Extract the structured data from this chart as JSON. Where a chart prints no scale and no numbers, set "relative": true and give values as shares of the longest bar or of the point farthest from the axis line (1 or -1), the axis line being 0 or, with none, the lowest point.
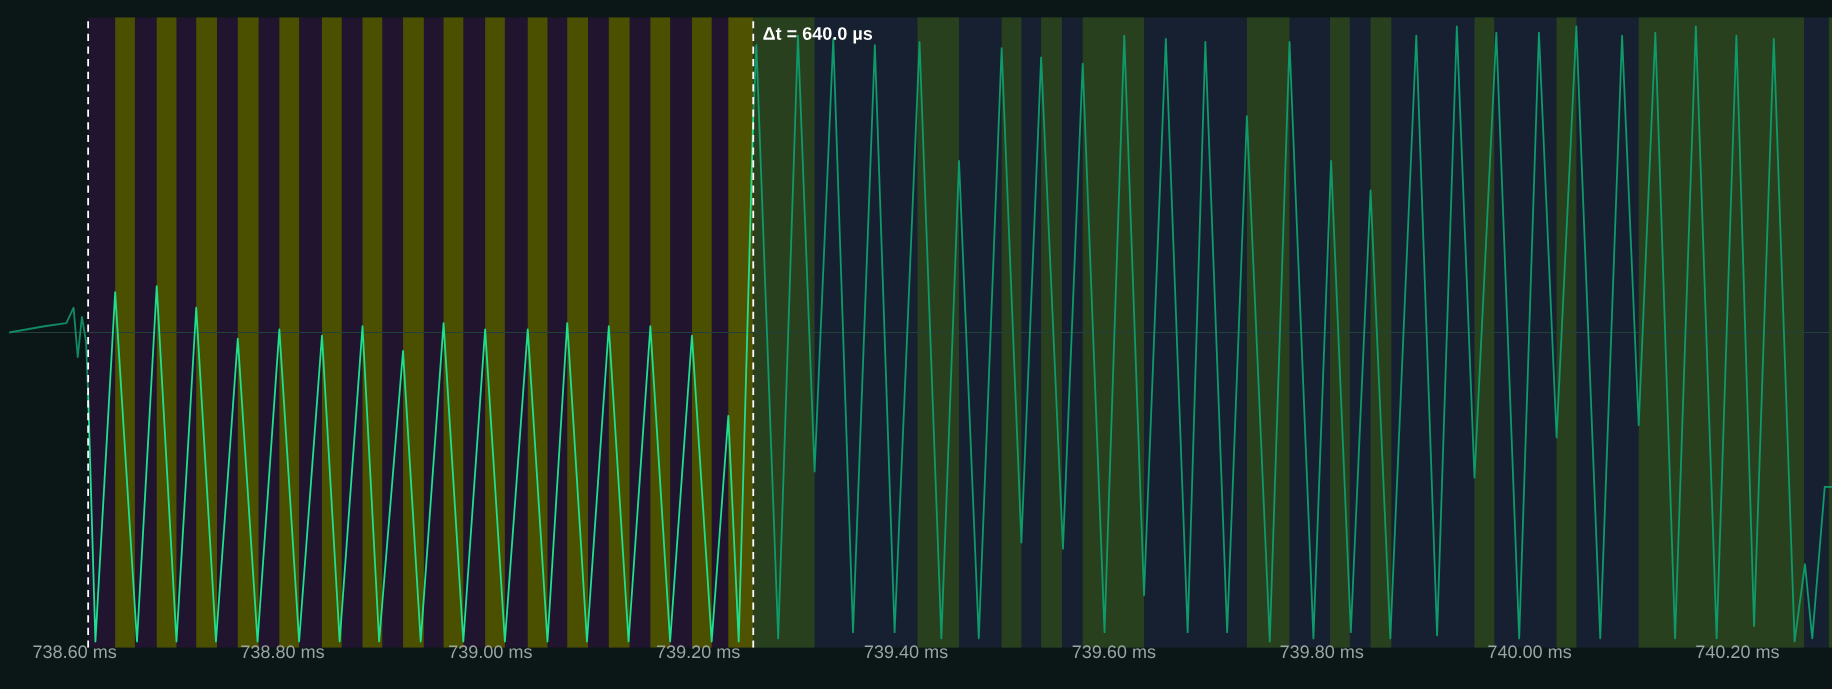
{
  "chart_data": {
    "type": "line",
    "relative": true,
    "xlim": [
      738.537,
      740.291
    ],
    "xticks": [
      {
        "value": 738.6,
        "label": "738.60 ms"
      },
      {
        "value": 738.8,
        "label": "738.80 ms"
      },
      {
        "value": 739.0,
        "label": "739.00 ms"
      },
      {
        "value": 739.2,
        "label": "739.20 ms"
      },
      {
        "value": 739.4,
        "label": "739.40 ms"
      },
      {
        "value": 739.6,
        "label": "739.60 ms"
      },
      {
        "value": 739.8,
        "label": "739.80 ms"
      },
      {
        "value": 740.0,
        "label": "740.00 ms"
      },
      {
        "value": 740.2,
        "label": "740.20 ms"
      }
    ],
    "tick_labels": "x",
    "grid": false,
    "annotations": [
      "Δt = 640.0 µs"
    ],
    "series": [
      {
        "color": "#128a64",
        "x": [
          738.537,
          738.571,
          738.592,
          738.599,
          738.603,
          738.607,
          738.611,
          738.613
        ],
        "values": [
          0,
          0.02,
          0.03,
          0.08,
          -0.08,
          0.05,
          -0.03,
          -0.2
        ]
      },
      {
        "color": "#1ee08e",
        "x": [
          738.613,
          738.62,
          738.639,
          738.66,
          738.679,
          738.698,
          738.717,
          738.736,
          738.757,
          738.776,
          738.797,
          738.816,
          738.838,
          738.855,
          738.877,
          738.893,
          738.916,
          738.933,
          738.955,
          738.974,
          738.995,
          739.014,
          739.036,
          739.055,
          739.074,
          739.093,
          739.114,
          739.133,
          739.154,
          739.173,
          739.194,
          739.213,
          739.229,
          739.239,
          739.253
        ],
        "values": [
          -0.2,
          -1.0,
          0.13,
          -1.0,
          0.15,
          -1.0,
          0.08,
          -1.0,
          -0.02,
          -1.0,
          0.01,
          -1.0,
          -0.01,
          -1.0,
          0.02,
          -1.0,
          -0.06,
          -1.0,
          0.03,
          -1.0,
          0.01,
          -1.0,
          0.01,
          -1.0,
          0.03,
          -1.0,
          0.02,
          -1.0,
          0.02,
          -1.0,
          -0.01,
          -1.0,
          -0.27,
          -1.0,
          0.7
        ]
      },
      {
        "color": "#0f9a6a",
        "x": [
          739.253,
          739.256,
          739.277,
          739.296,
          739.312,
          739.33,
          739.349,
          739.37,
          739.389,
          739.413,
          739.434,
          739.451,
          739.47,
          739.492,
          739.511,
          739.53,
          739.551,
          739.57,
          739.591,
          739.61,
          739.629,
          739.65,
          739.671,
          739.688,
          739.709,
          739.728,
          739.75,
          739.769,
          739.792,
          739.809,
          739.828,
          739.847,
          739.866,
          739.891,
          739.911,
          739.93,
          739.947,
          739.968,
          739.99,
          740.009,
          740.026,
          740.045,
          740.068,
          740.089,
          740.105,
          740.121,
          740.14,
          740.16,
          740.18,
          740.199,
          740.216,
          740.235,
          740.255,
          740.265,
          740.272,
          740.284,
          740.291
        ],
        "values": [
          0.7,
          0.93,
          -0.99,
          0.96,
          -0.45,
          0.95,
          -0.97,
          0.93,
          -0.97,
          0.94,
          -0.99,
          0.555,
          -0.99,
          0.92,
          -0.68,
          0.89,
          -0.7,
          0.87,
          -0.97,
          0.96,
          -0.85,
          0.95,
          -0.97,
          0.94,
          -0.97,
          0.7,
          -1.0,
          0.94,
          -0.99,
          0.555,
          -0.97,
          0.46,
          -0.99,
          0.96,
          -0.98,
          0.99,
          -0.47,
          0.97,
          -0.99,
          0.97,
          -0.34,
          0.99,
          -0.99,
          0.96,
          -0.3,
          0.97,
          -0.99,
          0.99,
          -0.99,
          0.96,
          -0.95,
          0.95,
          -1.0,
          -0.75,
          -0.99,
          -0.5,
          -0.5
        ]
      }
    ],
    "bands": [
      {
        "axis": "x",
        "from": 738.613,
        "to": 739.253,
        "color": "#21142e"
      },
      {
        "axis": "x",
        "from": 739.253,
        "to": 740.291,
        "color": "#172030"
      },
      {
        "axis": "x",
        "from": 738.639,
        "to": 738.658,
        "color": "#4a5000"
      },
      {
        "axis": "x",
        "from": 738.679,
        "to": 738.698,
        "color": "#4a5000"
      },
      {
        "axis": "x",
        "from": 738.717,
        "to": 738.737,
        "color": "#4a5000"
      },
      {
        "axis": "x",
        "from": 738.757,
        "to": 738.777,
        "color": "#4a5000"
      },
      {
        "axis": "x",
        "from": 738.797,
        "to": 738.816,
        "color": "#4a5000"
      },
      {
        "axis": "x",
        "from": 738.838,
        "to": 738.857,
        "color": "#4a5000"
      },
      {
        "axis": "x",
        "from": 738.877,
        "to": 738.896,
        "color": "#4a5000"
      },
      {
        "axis": "x",
        "from": 738.916,
        "to": 738.936,
        "color": "#4a5000"
      },
      {
        "axis": "x",
        "from": 738.955,
        "to": 738.974,
        "color": "#4a5000"
      },
      {
        "axis": "x",
        "from": 738.995,
        "to": 739.014,
        "color": "#4a5000"
      },
      {
        "axis": "x",
        "from": 739.036,
        "to": 739.055,
        "color": "#4a5000"
      },
      {
        "axis": "x",
        "from": 739.074,
        "to": 739.094,
        "color": "#4a5000"
      },
      {
        "axis": "x",
        "from": 739.114,
        "to": 739.134,
        "color": "#4a5000"
      },
      {
        "axis": "x",
        "from": 739.154,
        "to": 739.173,
        "color": "#4a5000"
      },
      {
        "axis": "x",
        "from": 739.194,
        "to": 739.213,
        "color": "#4a5000"
      },
      {
        "axis": "x",
        "from": 739.229,
        "to": 739.253,
        "color": "#4f5200"
      },
      {
        "axis": "x",
        "from": 739.253,
        "to": 739.312,
        "color": "#29401f"
      },
      {
        "axis": "x",
        "from": 739.411,
        "to": 739.451,
        "color": "#29401f"
      },
      {
        "axis": "x",
        "from": 739.492,
        "to": 739.511,
        "color": "#29401f"
      },
      {
        "axis": "x",
        "from": 739.53,
        "to": 739.55,
        "color": "#29401f"
      },
      {
        "axis": "x",
        "from": 739.57,
        "to": 739.629,
        "color": "#29401f"
      },
      {
        "axis": "x",
        "from": 739.728,
        "to": 739.769,
        "color": "#29401f"
      },
      {
        "axis": "x",
        "from": 739.808,
        "to": 739.827,
        "color": "#29401f"
      },
      {
        "axis": "x",
        "from": 739.847,
        "to": 739.867,
        "color": "#29401f"
      },
      {
        "axis": "x",
        "from": 739.947,
        "to": 739.966,
        "color": "#29401f"
      },
      {
        "axis": "x",
        "from": 740.026,
        "to": 740.045,
        "color": "#29401f"
      },
      {
        "axis": "x",
        "from": 740.105,
        "to": 740.264,
        "color": "#29401f"
      },
      {
        "axis": "x",
        "from": 740.288,
        "to": 740.291,
        "color": "#29401f"
      }
    ],
    "ref_lines": [
      {
        "axis": "x",
        "value": 738.613,
        "color": "#ffffff",
        "line_style": "dashed"
      },
      {
        "axis": "x",
        "value": 739.253,
        "color": "#ffffff",
        "line_style": "dashed"
      }
    ]
  }
}
